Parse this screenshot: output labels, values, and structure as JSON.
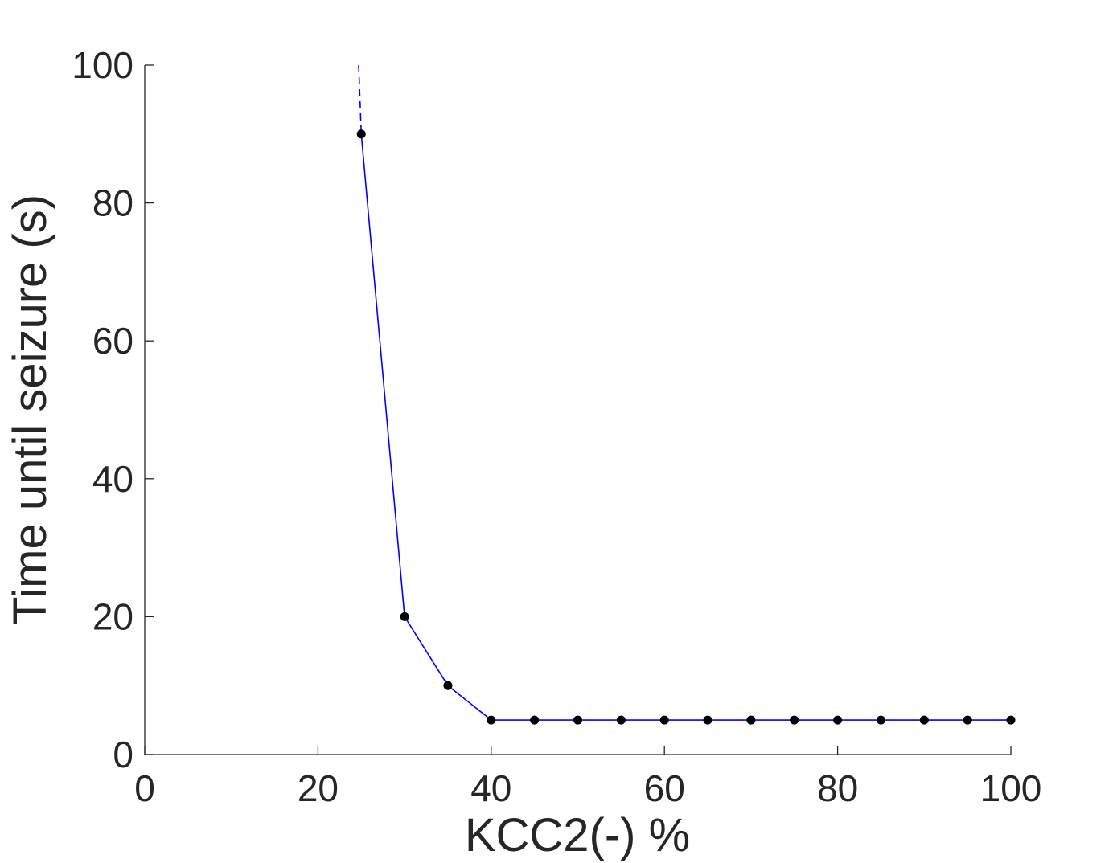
{
  "chart_data": {
    "type": "line",
    "xlabel": "KCC2(-) %",
    "ylabel": "Time until seizure (s)",
    "xlim": [
      0,
      100
    ],
    "ylim": [
      0,
      100
    ],
    "xticks": [
      0,
      20,
      40,
      60,
      80,
      100
    ],
    "yticks": [
      0,
      20,
      40,
      60,
      80,
      100
    ],
    "xtick_labels": [
      "0",
      "20",
      "40",
      "60",
      "80",
      "100"
    ],
    "ytick_labels": [
      "0",
      "20",
      "40",
      "60",
      "80",
      "100"
    ],
    "grid": false,
    "legend": "none",
    "series": [
      {
        "style": "solid line with markers",
        "line_color": "#0000ff",
        "marker_color": "#000000",
        "x": [
          25,
          30,
          35,
          40,
          45,
          50,
          55,
          60,
          65,
          70,
          75,
          80,
          85,
          90,
          95,
          100
        ],
        "y": [
          90,
          20,
          10,
          5,
          5,
          5,
          5,
          5,
          5,
          5,
          5,
          5,
          5,
          5,
          5,
          5
        ]
      },
      {
        "style": "dashed line",
        "line_color": "#0000ff",
        "x": [
          24.7,
          25
        ],
        "y": [
          100,
          90
        ]
      }
    ]
  }
}
